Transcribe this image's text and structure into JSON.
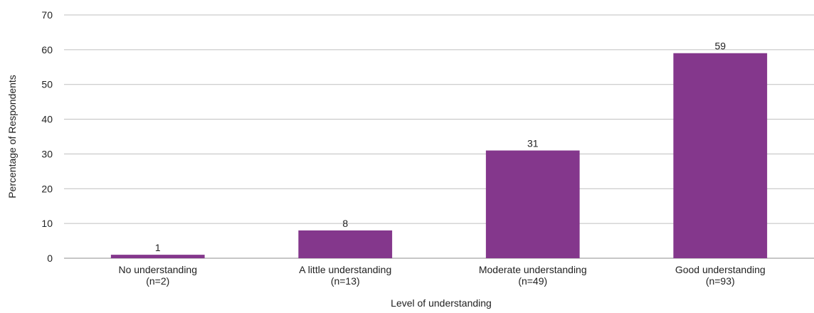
{
  "chart_data": {
    "type": "bar",
    "title": "",
    "xlabel": "Level of understanding",
    "ylabel": "Percentage of Respondents",
    "categories": [
      [
        "No understanding",
        "(n=2)"
      ],
      [
        "A little understanding",
        "(n=13)"
      ],
      [
        "Moderate understanding",
        "(n=49)"
      ],
      [
        "Good understanding",
        "(n=93)"
      ]
    ],
    "values": [
      1,
      8,
      31,
      59
    ],
    "data_labels": [
      "1",
      "8",
      "31",
      "59"
    ],
    "ylim": [
      0,
      70
    ],
    "yticks": [
      0,
      10,
      20,
      30,
      40,
      50,
      60,
      70
    ],
    "grid": true,
    "legend": "none",
    "colors": {
      "bar": "#84378C",
      "grid": "#BFBFBF",
      "axis": "#8C8C8C"
    }
  }
}
